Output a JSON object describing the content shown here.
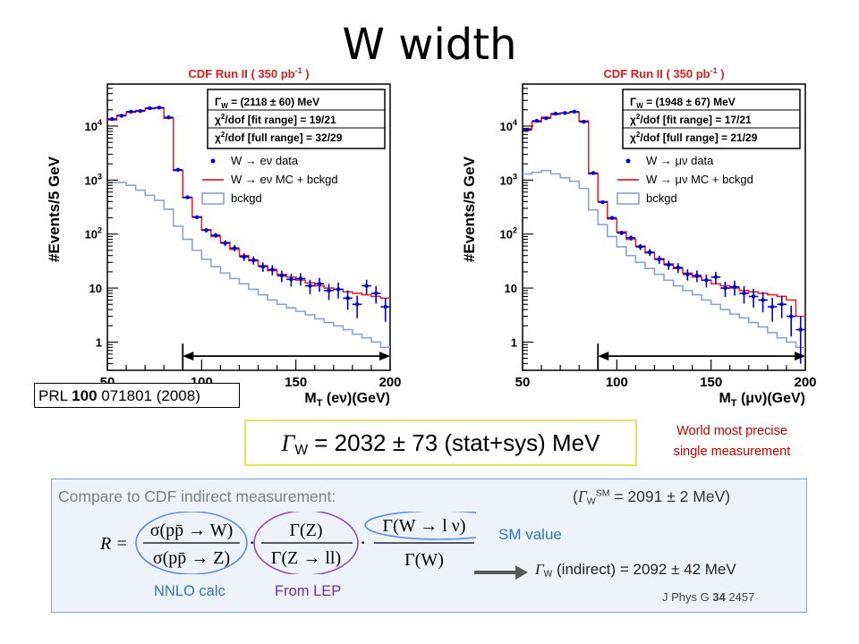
{
  "title": "W width",
  "colors": {
    "data": "#0000cc",
    "mc": "#e3262e",
    "bckgd": "#8ea3c8",
    "panel_border": "#7da0d8",
    "result_border": "#e8e35a",
    "note_red": "#c00000"
  },
  "chart_data": [
    {
      "type": "histogram",
      "panel_title": "CDF Run II ( 350 pb",
      "panel_title_sup": "-1",
      "panel_title_end": " )",
      "ylabel": "#Events/5 GeV",
      "xlabel_pre": "M",
      "xlabel_sub": "T",
      "xlabel_post": " (eν)(GeV)",
      "xlim": [
        50,
        200
      ],
      "ylim": [
        0.3,
        60000
      ],
      "yscale": "log",
      "xticks": [
        "50",
        "100",
        "150",
        "200"
      ],
      "yticks": [
        {
          "v": 1,
          "label": "1"
        },
        {
          "v": 10,
          "label": "10"
        },
        {
          "v": 100,
          "label": "10",
          "sup": "2"
        },
        {
          "v": 1000,
          "label": "10",
          "sup": "3"
        },
        {
          "v": 10000,
          "label": "10",
          "sup": "4"
        }
      ],
      "stats": [
        {
          "pre": "Γ",
          "sub": "W",
          "post": " = (2118 ± 60) MeV"
        },
        {
          "pre": "χ",
          "sup": "2",
          "post": "/dof [fit range]   = 19/21"
        },
        {
          "pre": "χ",
          "sup": "2",
          "post": "/dof [full range] = 32/29"
        }
      ],
      "legend": [
        {
          "kind": "data",
          "text": "W → eν data"
        },
        {
          "kind": "mc",
          "text": "W → eν MC + bckgd"
        },
        {
          "kind": "bckgd",
          "text": "bckgd"
        }
      ],
      "fit_range": [
        90,
        200
      ],
      "bin_edges": [
        50,
        55,
        60,
        65,
        70,
        75,
        80,
        85,
        90,
        95,
        100,
        105,
        110,
        115,
        120,
        125,
        130,
        135,
        140,
        145,
        150,
        155,
        160,
        165,
        170,
        175,
        180,
        185,
        190,
        195,
        200
      ],
      "mc": [
        13000,
        16000,
        18000,
        19500,
        21000,
        21500,
        14000,
        1500,
        470,
        210,
        120,
        90,
        70,
        52,
        40,
        32,
        26,
        21,
        18,
        16,
        14,
        12.5,
        11,
        10,
        9.5,
        8.5,
        8,
        7.5,
        7,
        6.5
      ],
      "bckgd": [
        900,
        900,
        800,
        650,
        520,
        420,
        290,
        140,
        80,
        50,
        34,
        25,
        19,
        15,
        12,
        9.5,
        7.5,
        6,
        5,
        4.3,
        3.7,
        3.2,
        2.7,
        2.3,
        2,
        1.7,
        1.4,
        1.2,
        1,
        0.8
      ],
      "data_y": [
        13500,
        15500,
        18500,
        19000,
        21500,
        22000,
        14500,
        1550,
        480,
        205,
        118,
        95,
        68,
        55,
        38,
        33,
        25,
        22,
        17,
        14.5,
        15,
        11,
        12,
        9,
        9.5,
        6.5,
        5,
        11,
        8,
        4.5
      ]
    },
    {
      "type": "histogram",
      "panel_title": "CDF Run II ( 350 pb",
      "panel_title_sup": "-1",
      "panel_title_end": " )",
      "ylabel": "#Events/5 GeV",
      "xlabel_pre": "M",
      "xlabel_sub": "T",
      "xlabel_post": " (μν)(GeV)",
      "xlim": [
        50,
        200
      ],
      "ylim": [
        0.3,
        60000
      ],
      "yscale": "log",
      "xticks": [
        "50",
        "100",
        "150",
        "200"
      ],
      "yticks": [
        {
          "v": 1,
          "label": "1"
        },
        {
          "v": 10,
          "label": "10"
        },
        {
          "v": 100,
          "label": "10",
          "sup": "2"
        },
        {
          "v": 1000,
          "label": "10",
          "sup": "3"
        },
        {
          "v": 10000,
          "label": "10",
          "sup": "4"
        }
      ],
      "stats": [
        {
          "pre": "Γ",
          "sub": "W",
          "post": " = (1948 ± 67) MeV"
        },
        {
          "pre": "χ",
          "sup": "2",
          "post": "/dof [fit range]   = 17/21"
        },
        {
          "pre": "χ",
          "sup": "2",
          "post": "/dof [full range] = 21/29"
        }
      ],
      "legend": [
        {
          "kind": "data",
          "text": "W → μν data"
        },
        {
          "kind": "mc",
          "text": "W → μν MC + bckgd"
        },
        {
          "kind": "bckgd",
          "text": "bckgd"
        }
      ],
      "fit_range": [
        90,
        200
      ],
      "bin_edges": [
        50,
        55,
        60,
        65,
        70,
        75,
        80,
        85,
        90,
        95,
        100,
        105,
        110,
        115,
        120,
        125,
        130,
        135,
        140,
        145,
        150,
        155,
        160,
        165,
        170,
        175,
        180,
        185,
        190,
        195,
        200
      ],
      "mc": [
        9000,
        12000,
        14500,
        16500,
        17500,
        18000,
        12500,
        1300,
        400,
        190,
        110,
        80,
        60,
        45,
        35,
        28,
        23,
        19,
        16,
        14,
        12,
        11,
        10,
        9,
        8.5,
        8,
        7.5,
        7,
        6,
        3
      ],
      "bckgd": [
        1300,
        1400,
        1500,
        1300,
        1100,
        950,
        700,
        280,
        150,
        90,
        58,
        40,
        30,
        23,
        18,
        14,
        11,
        9,
        7.5,
        6,
        5,
        4,
        3.3,
        2.8,
        2.3,
        1.9,
        1.5,
        1.2,
        1,
        0.8
      ],
      "data_y": [
        8500,
        12500,
        14000,
        17000,
        17500,
        18500,
        12000,
        1350,
        390,
        200,
        105,
        85,
        58,
        46,
        34,
        27,
        24,
        18,
        17,
        14,
        16,
        10,
        10.5,
        8,
        7,
        6,
        4.5,
        5,
        3,
        1.7
      ]
    }
  ],
  "citation": {
    "pre": "PRL ",
    "bold": "100",
    "post": " 071801 (2008)"
  },
  "result": {
    "gamma": "Γ",
    "sub": "W",
    "text": " = 2032 ± 73 (stat+sys) MeV"
  },
  "world_note": [
    "World most precise",
    "single measurement"
  ],
  "compare": {
    "label": "Compare to CDF indirect measurement:",
    "sm_width": {
      "open": "(",
      "gamma": "Γ",
      "sub": "W",
      "sup": "SM",
      "text": " = 2091 ± 2 MeV)"
    },
    "formula": {
      "lhs": "R =",
      "sigma_w": "σ(pp̄ → W)",
      "sigma_z": "σ(pp̄ → Z)",
      "gamma_z": "Γ(Z)",
      "gamma_zll": "Γ(Z → ll)",
      "gamma_wlnu": "Γ(W → l ν)",
      "gamma_w": "Γ(W)",
      "dot": "·"
    },
    "sm_value_label": "SM value",
    "nnlo_label": "NNLO calc",
    "lep_label": "From LEP",
    "indirect": {
      "gamma": "Γ",
      "sub": "W",
      "text": " (indirect) = 2092 ± 42 MeV"
    },
    "jphys": {
      "pre": "J Phys G ",
      "bold": "34",
      "post": " 2457"
    }
  }
}
